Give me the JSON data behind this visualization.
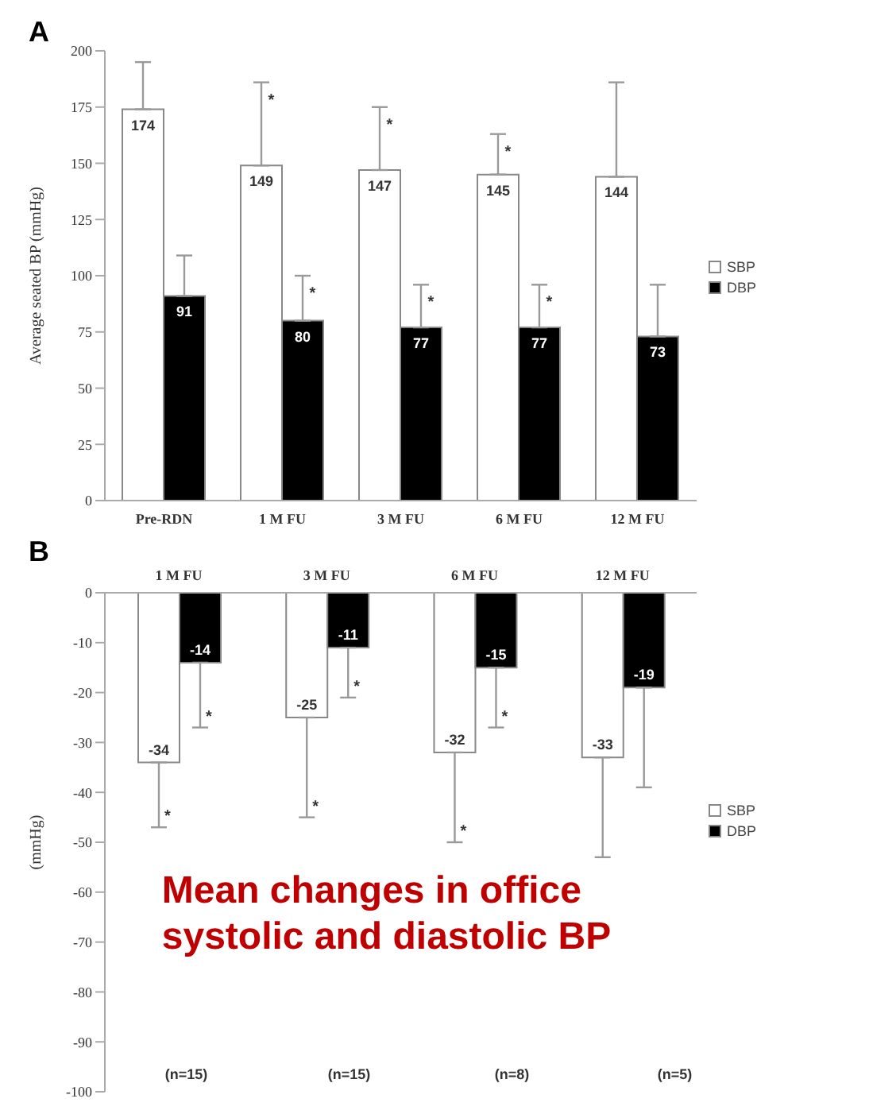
{
  "chart_data": [
    {
      "type": "bar",
      "title": "A",
      "ylabel": "Average seated BP (mmHg)",
      "categories": [
        "Pre-RDN",
        "1 M FU",
        "3 M FU",
        "6 M FU",
        "12 M FU"
      ],
      "series": [
        {
          "name": "SBP",
          "color": "#ffffff",
          "values": [
            174,
            149,
            147,
            145,
            144
          ],
          "errors": [
            [
              174,
              195
            ],
            [
              149,
              186
            ],
            [
              147,
              175
            ],
            [
              145,
              163
            ],
            [
              144,
              186
            ]
          ]
        },
        {
          "name": "DBP",
          "color": "#000000",
          "values": [
            91,
            80,
            77,
            77,
            73
          ],
          "errors": [
            [
              91,
              109
            ],
            [
              80,
              100
            ],
            [
              77,
              96
            ],
            [
              77,
              96
            ],
            [
              73,
              96
            ]
          ]
        }
      ],
      "ylim": [
        0,
        200
      ],
      "yticks": [
        0,
        25,
        50,
        75,
        100,
        125,
        150,
        175,
        200
      ],
      "data_labels": true,
      "legend": "right",
      "grid": false,
      "annotations": [
        "*",
        "*",
        "*",
        "*",
        "*",
        "*"
      ]
    },
    {
      "type": "bar",
      "title": "B",
      "ylabel": "(mmHg)",
      "categories": [
        "1 M FU",
        "3 M FU",
        "6 M FU",
        "12 M FU"
      ],
      "series": [
        {
          "name": "SBP",
          "color": "#ffffff",
          "values": [
            -34,
            -25,
            -32,
            -33
          ],
          "errors": [
            [
              -47,
              -34
            ],
            [
              -45,
              -25
            ],
            [
              -50,
              -32
            ],
            [
              -53,
              -33
            ]
          ]
        },
        {
          "name": "DBP",
          "color": "#000000",
          "values": [
            -14,
            -11,
            -15,
            -19
          ],
          "errors": [
            [
              -27,
              -14
            ],
            [
              -21,
              -11
            ],
            [
              -27,
              -15
            ],
            [
              -39,
              -19
            ]
          ]
        }
      ],
      "ylim": [
        -100,
        0
      ],
      "yticks": [
        -100,
        -90,
        -80,
        -70,
        -60,
        -50,
        -40,
        -30,
        -20,
        -10,
        0
      ],
      "data_labels": true,
      "legend": "right",
      "grid": false,
      "annotations": [
        "*",
        "*",
        "*",
        "*",
        "*",
        "*",
        "(n=15)",
        "(n=15)",
        "(n=8)",
        "(n=5)"
      ],
      "subtitle": "Mean changes in office systolic and diastolic BP"
    }
  ]
}
